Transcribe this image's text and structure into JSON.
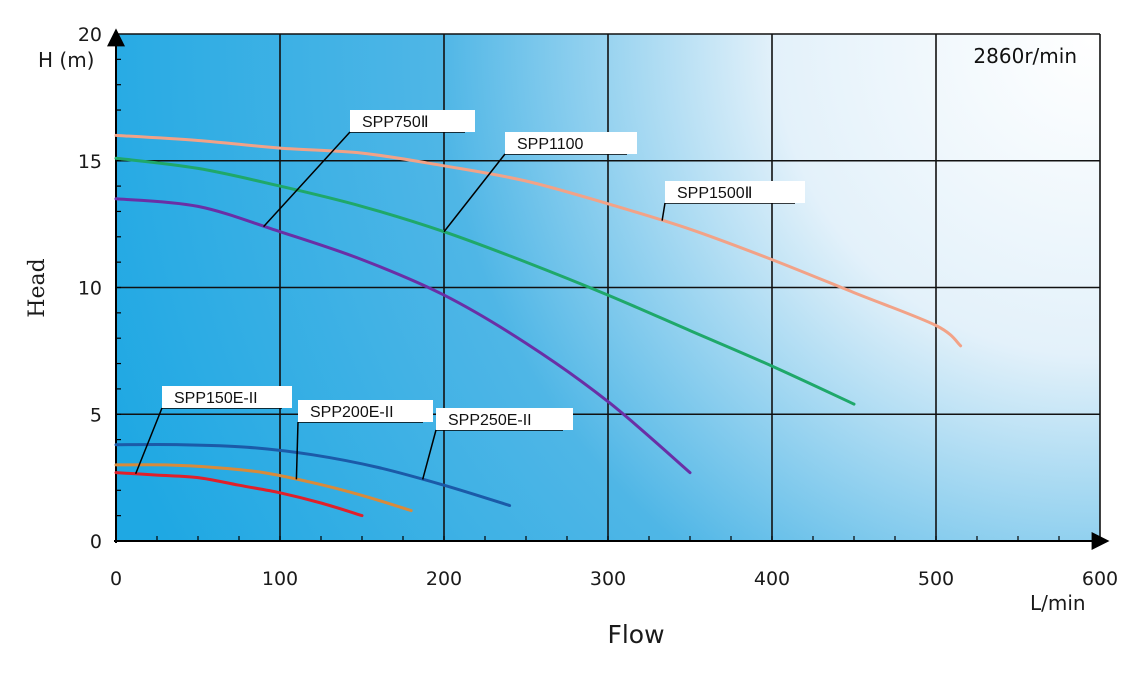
{
  "chart_data": {
    "type": "line",
    "xlabel": "Flow",
    "ylabel": "Head",
    "x_unit": "L/min",
    "y_unit": "H (m)",
    "annotation": "2860r/min",
    "xlim": [
      0,
      600
    ],
    "ylim": [
      0,
      20
    ],
    "x_ticks": [
      0,
      100,
      200,
      300,
      400,
      500,
      600
    ],
    "y_ticks": [
      0,
      5,
      10,
      15,
      20
    ],
    "grid": true,
    "series": [
      {
        "name": "SPP750Ⅱ",
        "color": "#6a2fa6",
        "x": [
          0,
          50,
          100,
          150,
          200,
          250,
          300,
          350
        ],
        "y": [
          13.5,
          13.2,
          12.2,
          11.1,
          9.7,
          7.8,
          5.5,
          2.7
        ]
      },
      {
        "name": "SPP1100",
        "color": "#1fa86a",
        "x": [
          0,
          50,
          100,
          150,
          200,
          250,
          300,
          350,
          400,
          450
        ],
        "y": [
          15.1,
          14.7,
          14.0,
          13.2,
          12.2,
          11.0,
          9.7,
          8.3,
          6.9,
          5.4
        ]
      },
      {
        "name": "SPP1500Ⅱ",
        "color": "#f2a287",
        "x": [
          0,
          50,
          100,
          150,
          200,
          250,
          300,
          350,
          400,
          450,
          500,
          515
        ],
        "y": [
          16.0,
          15.8,
          15.5,
          15.3,
          14.8,
          14.2,
          13.3,
          12.3,
          11.1,
          9.8,
          8.5,
          7.7
        ]
      },
      {
        "name": "SPP150E-II",
        "color": "#e0202a",
        "x": [
          0,
          25,
          50,
          75,
          100,
          125,
          150
        ],
        "y": [
          2.7,
          2.6,
          2.5,
          2.2,
          1.9,
          1.5,
          1.0
        ]
      },
      {
        "name": "SPP200E-II",
        "color": "#d88a3a",
        "x": [
          0,
          30,
          60,
          90,
          120,
          150,
          180
        ],
        "y": [
          3.0,
          3.0,
          2.9,
          2.7,
          2.3,
          1.8,
          1.2
        ]
      },
      {
        "name": "SPP250E-II",
        "color": "#1b5aa8",
        "x": [
          0,
          40,
          80,
          120,
          160,
          200,
          240
        ],
        "y": [
          3.8,
          3.8,
          3.7,
          3.4,
          2.9,
          2.2,
          1.4
        ]
      }
    ]
  }
}
